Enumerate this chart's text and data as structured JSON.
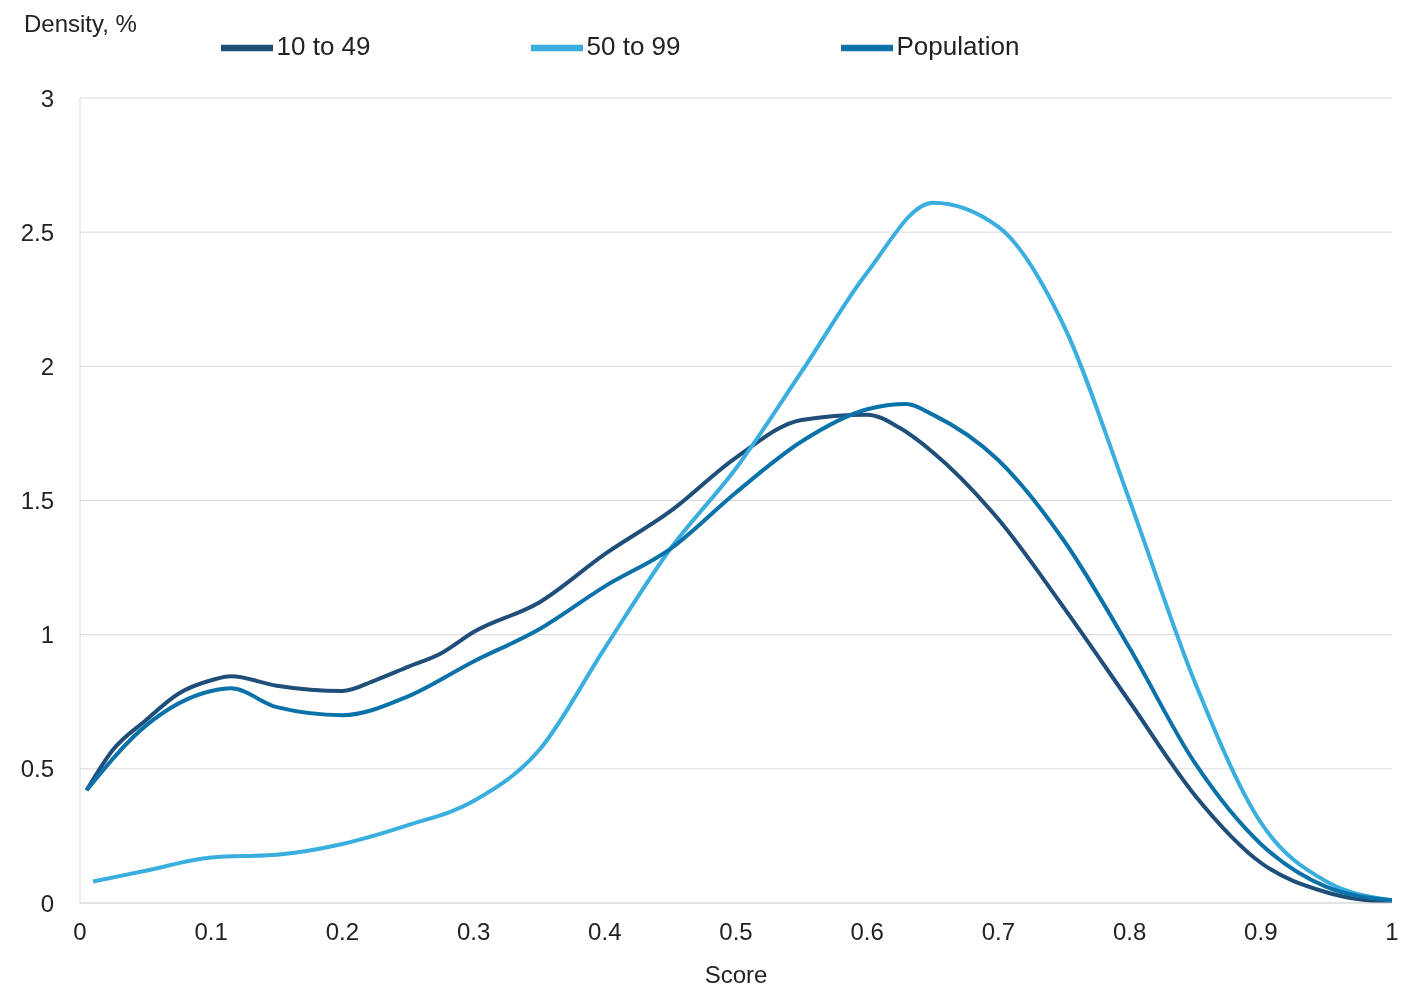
{
  "chart_data": {
    "type": "line",
    "xlabel": "Score",
    "ylabel": "Density, %",
    "xlim": [
      0,
      1
    ],
    "xticks": [
      0,
      0.1,
      0.2,
      0.3,
      0.4,
      0.5,
      0.6,
      0.7,
      0.8,
      0.9,
      1
    ],
    "ylim": [
      0,
      3
    ],
    "yticks": [
      0,
      0.5,
      1,
      1.5,
      2,
      2.5,
      3
    ],
    "grid": "y",
    "legend": "top",
    "marker": "none",
    "line_style": "solid",
    "series": [
      {
        "name": "10 to 49",
        "color": "#1f4e79",
        "x": [
          0.005,
          0.025,
          0.05,
          0.075,
          0.1,
          0.115,
          0.15,
          0.2,
          0.225,
          0.25,
          0.275,
          0.3,
          0.35,
          0.4,
          0.45,
          0.5,
          0.55,
          0.6,
          0.625,
          0.65,
          0.7,
          0.75,
          0.8,
          0.85,
          0.9,
          0.95,
          1
        ],
        "values": [
          0.42,
          0.57,
          0.68,
          0.78,
          0.83,
          0.845,
          0.81,
          0.79,
          0.83,
          0.88,
          0.93,
          1.01,
          1.12,
          1.3,
          1.46,
          1.66,
          1.8,
          1.82,
          1.77,
          1.68,
          1.43,
          1.1,
          0.75,
          0.4,
          0.15,
          0.04,
          0
        ]
      },
      {
        "name": "50 to 99",
        "color": "#3aaedf",
        "x": [
          0.01,
          0.05,
          0.1,
          0.15,
          0.2,
          0.25,
          0.3,
          0.35,
          0.4,
          0.45,
          0.5,
          0.55,
          0.6,
          0.65,
          0.7,
          0.75,
          0.8,
          0.85,
          0.9,
          0.95,
          1
        ],
        "values": [
          0.08,
          0.12,
          0.17,
          0.18,
          0.22,
          0.29,
          0.38,
          0.57,
          0.95,
          1.32,
          1.62,
          1.98,
          2.35,
          2.61,
          2.52,
          2.15,
          1.5,
          0.82,
          0.3,
          0.08,
          0.01
        ]
      },
      {
        "name": "Population",
        "color": "#0a72a8",
        "x": [
          0.005,
          0.05,
          0.1,
          0.115,
          0.15,
          0.2,
          0.25,
          0.3,
          0.35,
          0.4,
          0.45,
          0.5,
          0.55,
          0.6,
          0.63,
          0.65,
          0.7,
          0.75,
          0.8,
          0.85,
          0.9,
          0.95,
          1
        ],
        "values": [
          0.42,
          0.66,
          0.79,
          0.8,
          0.73,
          0.7,
          0.77,
          0.9,
          1.02,
          1.18,
          1.32,
          1.53,
          1.72,
          1.84,
          1.86,
          1.82,
          1.65,
          1.35,
          0.95,
          0.52,
          0.22,
          0.06,
          0.01
        ]
      }
    ]
  }
}
